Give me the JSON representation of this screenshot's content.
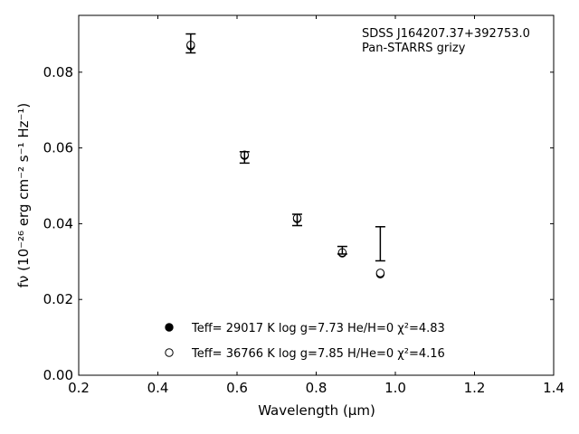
{
  "chart_data": {
    "type": "scatter",
    "title": "",
    "xlabel": "Wavelength (μm)",
    "ylabel": "fν (10⁻²⁶ erg cm⁻² s⁻¹ Hz⁻¹)",
    "xlim": [
      0.2,
      1.4
    ],
    "ylim": [
      0.0,
      0.095
    ],
    "xticks": [
      0.2,
      0.4,
      0.6,
      0.8,
      1.0,
      1.2,
      1.4
    ],
    "xtick_labels": [
      "0.2",
      "0.4",
      "0.6",
      "0.8",
      "1.0",
      "1.2",
      "1.4"
    ],
    "yticks": [
      0.0,
      0.02,
      0.04,
      0.06,
      0.08
    ],
    "ytick_labels": [
      "0.00",
      "0.02",
      "0.04",
      "0.06",
      "0.08"
    ],
    "grid": false,
    "annotations": [
      "SDSS J164207.37+392753.0",
      "Pan-STARRS grizy"
    ],
    "observed": {
      "x": [
        0.483,
        0.619,
        0.752,
        0.866,
        0.962
      ],
      "y": [
        0.0876,
        0.0575,
        0.041,
        0.033,
        0.0347
      ],
      "yerr_low": [
        0.0025,
        0.0015,
        0.0015,
        0.001,
        0.0045
      ],
      "yerr_high": [
        0.0025,
        0.0015,
        0.0015,
        0.001,
        0.0045
      ]
    },
    "series": [
      {
        "name": "Teff= 29017 K  log g=7.73  He/H=0  χ²=4.83",
        "marker": "filled-circle",
        "x": [
          0.483,
          0.619,
          0.752,
          0.866,
          0.962
        ],
        "y": [
          0.0869,
          0.058,
          0.0413,
          0.0322,
          0.0267
        ]
      },
      {
        "name": "Teff= 36766 K  log g=7.85  H/He=0  χ²=4.16",
        "marker": "open-circle",
        "x": [
          0.483,
          0.619,
          0.752,
          0.866,
          0.962
        ],
        "y": [
          0.0872,
          0.0582,
          0.0415,
          0.0324,
          0.027
        ]
      }
    ],
    "legend_position": "bottom-center"
  }
}
